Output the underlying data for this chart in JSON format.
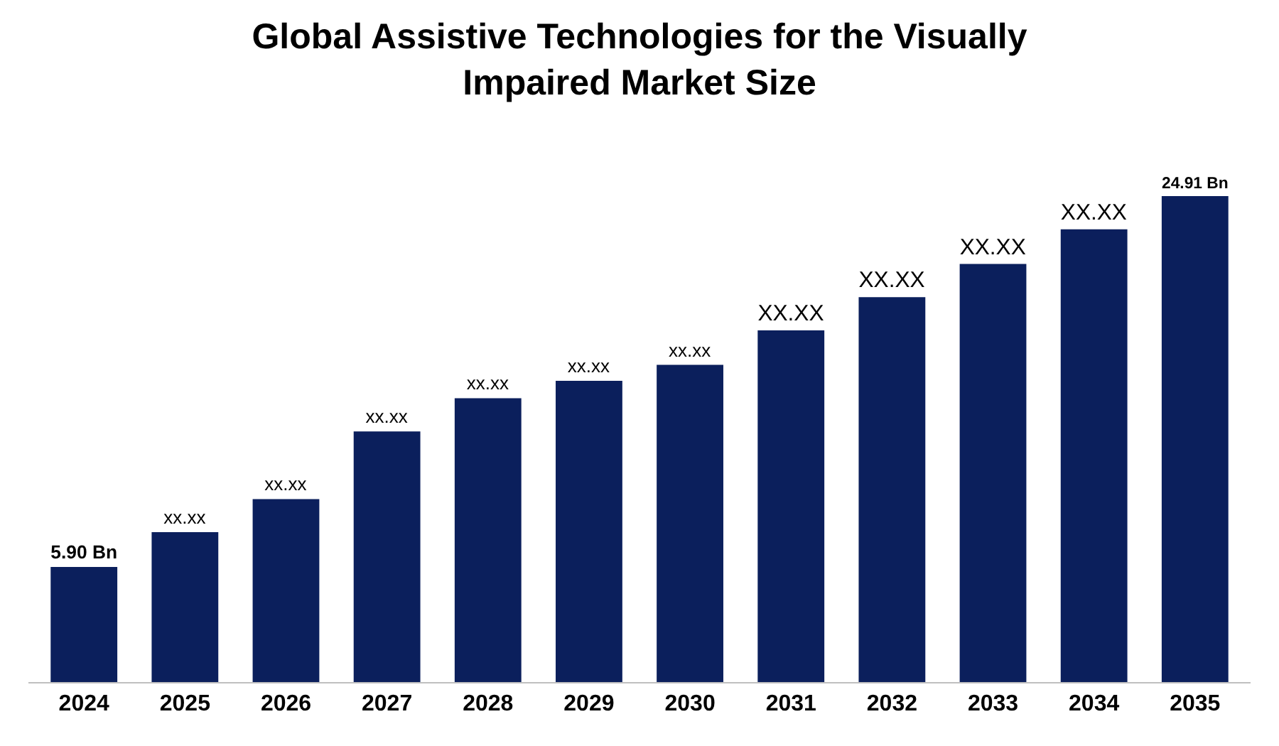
{
  "chart_data": {
    "type": "bar",
    "title": "Global Assistive Technologies for the Visually\nImpaired Market Size",
    "categories": [
      "2024",
      "2025",
      "2026",
      "2027",
      "2028",
      "2029",
      "2030",
      "2031",
      "2032",
      "2033",
      "2034",
      "2035"
    ],
    "values": [
      5.9,
      7.68,
      9.38,
      12.85,
      14.55,
      15.44,
      16.26,
      18.03,
      19.73,
      21.43,
      23.21,
      24.91
    ],
    "value_labels": [
      "5.90 Bn",
      "xx.xx",
      "xx.xx",
      "xx.xx",
      "xx.xx",
      "xx.xx",
      "xx.xx",
      "XX.XX",
      "XX.XX",
      "XX.XX",
      "XX.XX",
      "24.91 Bn"
    ],
    "color": "#0b1f5c",
    "legend": false
  }
}
